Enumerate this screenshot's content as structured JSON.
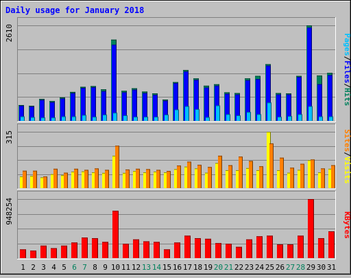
{
  "chart_data": {
    "type": "bar",
    "title": "Daily usage for January 2018",
    "colors": {
      "hits": "#00805c",
      "files": "#0000ff",
      "pages": "#00c0ff",
      "visits": "#ffff00",
      "sites": "#ff8000",
      "kbytes": "#ff0000",
      "title": "#0000ff",
      "weekend_label": "#00805c",
      "weekday_label": "#000000",
      "background": "#c0c0c0",
      "plot_background": "#c0c0c0"
    },
    "categories": [
      "1",
      "2",
      "3",
      "4",
      "5",
      "6",
      "7",
      "8",
      "9",
      "10",
      "11",
      "12",
      "13",
      "14",
      "15",
      "16",
      "17",
      "18",
      "19",
      "20",
      "21",
      "22",
      "23",
      "24",
      "25",
      "26",
      "27",
      "28",
      "29",
      "30",
      "31"
    ],
    "weekend_days": [
      "6",
      "7",
      "13",
      "14",
      "20",
      "21",
      "27",
      "28"
    ],
    "panels": [
      {
        "id": "hits-files-pages",
        "max_label": "2610",
        "ylim": [
          0,
          2610
        ],
        "right_label": [
          {
            "text": "Pages",
            "color": "#00c0ff"
          },
          {
            "text": "/",
            "color": "#000000"
          },
          {
            "text": "Files",
            "color": "#0000ff"
          },
          {
            "text": "/",
            "color": "#000000"
          },
          {
            "text": "Hits",
            "color": "#00805c"
          }
        ],
        "series": [
          {
            "name": "Hits",
            "color": "#00805c",
            "values": [
              430,
              410,
              600,
              540,
              640,
              790,
              930,
              950,
              860,
              2220,
              820,
              890,
              800,
              750,
              580,
              1060,
              1390,
              1160,
              960,
              1000,
              780,
              760,
              1160,
              1230,
              1550,
              760,
              750,
              1230,
              2610,
              1240,
              1310
            ]
          },
          {
            "name": "Files",
            "color": "#0000ff",
            "values": [
              410,
              390,
              570,
              510,
              610,
              760,
              900,
              920,
              810,
              2080,
              780,
              850,
              760,
              710,
              550,
              1030,
              1350,
              1120,
              910,
              960,
              740,
              720,
              1110,
              1140,
              1510,
              720,
              720,
              1200,
              2550,
              1000,
              1250
            ]
          },
          {
            "name": "Pages",
            "color": "#00c0ff",
            "values": [
              120,
              100,
              90,
              90,
              120,
              120,
              160,
              110,
              170,
              220,
              150,
              110,
              110,
              110,
              170,
              310,
              400,
              320,
              100,
              420,
              180,
              150,
              240,
              180,
              500,
              110,
              130,
              180,
              400,
              120,
              120
            ]
          }
        ]
      },
      {
        "id": "visits-sites",
        "max_label": "315",
        "ylim": [
          0,
          315
        ],
        "right_label": [
          {
            "text": "Sites",
            "color": "#ff8000"
          },
          {
            "text": "/",
            "color": "#000000"
          },
          {
            "text": "Visits",
            "color": "#ffff00"
          }
        ],
        "series": [
          {
            "name": "Visits",
            "color": "#ffff00",
            "values": [
              65,
              68,
              60,
              78,
              72,
              92,
              93,
              88,
              85,
              181,
              85,
              95,
              88,
              92,
              88,
              106,
              120,
              110,
              86,
              140,
              100,
              100,
              112,
              100,
              315,
              100,
              86,
              102,
              156,
              88,
              108
            ]
          },
          {
            "name": "Sites",
            "color": "#ff8000",
            "values": [
              97,
              97,
              65,
              108,
              86,
              108,
              102,
              110,
              102,
              237,
              104,
              108,
              106,
              102,
              96,
              126,
              148,
              130,
              118,
              181,
              128,
              176,
              152,
              122,
              250,
              170,
              114,
              136,
              160,
              110,
              128
            ]
          }
        ]
      },
      {
        "id": "kbytes",
        "max_label": "948254",
        "ylim": [
          0,
          948254
        ],
        "right_label": [
          {
            "text": "KBytes",
            "color": "#ff0000"
          }
        ],
        "series": [
          {
            "name": "KBytes",
            "color": "#ff0000",
            "values": [
              140000,
              120000,
              200000,
              160000,
              200000,
              250000,
              330000,
              320000,
              260000,
              760000,
              230000,
              300000,
              270000,
              260000,
              140000,
              250000,
              360000,
              320000,
              310000,
              240000,
              230000,
              180000,
              300000,
              350000,
              360000,
              220000,
              220000,
              360000,
              948254,
              320000,
              430000
            ]
          }
        ]
      }
    ]
  }
}
